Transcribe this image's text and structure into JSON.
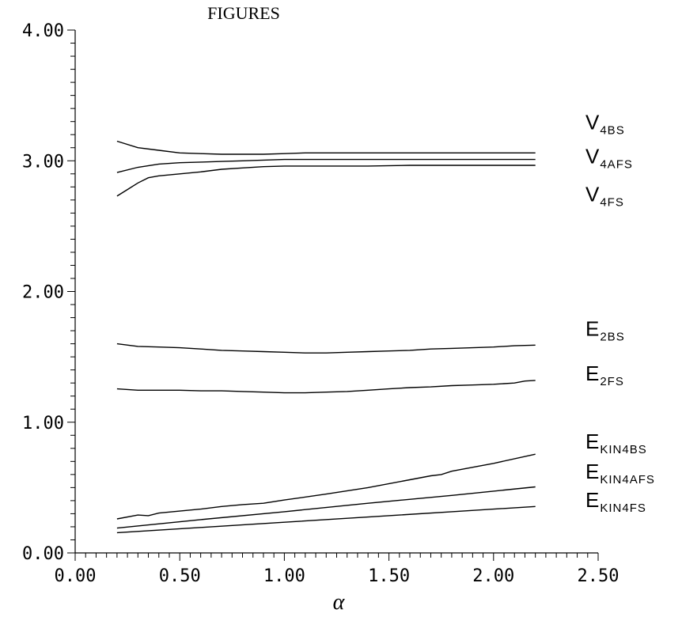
{
  "chart_data": {
    "type": "line",
    "title": "FIGURES",
    "xlabel": "α",
    "ylabel": "",
    "xlim": [
      0,
      2.5
    ],
    "ylim": [
      0,
      4
    ],
    "x_ticks": [
      "0.00",
      "0.50",
      "1.00",
      "1.50",
      "2.00",
      "2.50"
    ],
    "y_ticks": [
      "0.00",
      "1.00",
      "2.00",
      "3.00",
      "4.00"
    ],
    "grid": false,
    "series": [
      {
        "name": "V4BS",
        "main": "V",
        "sub": "4BS",
        "label_y": 3.24,
        "x": [
          0.2,
          0.3,
          0.4,
          0.5,
          0.6,
          0.7,
          0.8,
          0.9,
          1.0,
          1.1,
          1.2,
          1.4,
          1.6,
          1.8,
          2.0,
          2.2
        ],
        "y": [
          3.15,
          3.1,
          3.08,
          3.06,
          3.055,
          3.05,
          3.05,
          3.05,
          3.055,
          3.06,
          3.06,
          3.06,
          3.06,
          3.06,
          3.06,
          3.06
        ]
      },
      {
        "name": "V4AFS",
        "main": "V",
        "sub": "4AFS",
        "label_y": 2.98,
        "x": [
          0.2,
          0.3,
          0.4,
          0.5,
          0.6,
          0.7,
          0.8,
          0.9,
          1.0,
          1.2,
          1.4,
          1.6,
          1.8,
          2.0,
          2.2
        ],
        "y": [
          2.91,
          2.95,
          2.975,
          2.985,
          2.99,
          2.995,
          3.0,
          3.005,
          3.01,
          3.01,
          3.01,
          3.01,
          3.01,
          3.01,
          3.01
        ]
      },
      {
        "name": "V4FS",
        "main": "V",
        "sub": "4FS",
        "label_y": 2.69,
        "x": [
          0.2,
          0.25,
          0.3,
          0.35,
          0.4,
          0.5,
          0.6,
          0.7,
          0.8,
          0.9,
          1.0,
          1.2,
          1.4,
          1.6,
          1.8,
          2.0,
          2.2
        ],
        "y": [
          2.73,
          2.78,
          2.83,
          2.87,
          2.885,
          2.9,
          2.915,
          2.935,
          2.945,
          2.955,
          2.96,
          2.96,
          2.96,
          2.965,
          2.965,
          2.965,
          2.965
        ]
      },
      {
        "name": "E2BS",
        "main": "E",
        "sub": "2BS",
        "label_y": 1.66,
        "x": [
          0.2,
          0.3,
          0.4,
          0.5,
          0.6,
          0.7,
          0.8,
          0.9,
          1.0,
          1.1,
          1.2,
          1.3,
          1.4,
          1.5,
          1.6,
          1.7,
          1.8,
          1.9,
          2.0,
          2.1,
          2.2
        ],
        "y": [
          1.6,
          1.58,
          1.575,
          1.57,
          1.56,
          1.55,
          1.545,
          1.54,
          1.535,
          1.53,
          1.53,
          1.535,
          1.54,
          1.545,
          1.55,
          1.56,
          1.565,
          1.57,
          1.575,
          1.585,
          1.59
        ]
      },
      {
        "name": "E2FS",
        "main": "E",
        "sub": "2FS",
        "label_y": 1.32,
        "x": [
          0.2,
          0.3,
          0.4,
          0.5,
          0.6,
          0.7,
          0.8,
          0.9,
          1.0,
          1.1,
          1.2,
          1.3,
          1.4,
          1.5,
          1.6,
          1.7,
          1.8,
          1.9,
          2.0,
          2.1,
          2.15,
          2.2
        ],
        "y": [
          1.255,
          1.245,
          1.245,
          1.245,
          1.24,
          1.24,
          1.235,
          1.23,
          1.225,
          1.225,
          1.23,
          1.235,
          1.245,
          1.255,
          1.265,
          1.27,
          1.28,
          1.285,
          1.29,
          1.3,
          1.315,
          1.32
        ]
      },
      {
        "name": "EKIN4BS",
        "main": "E",
        "sub": "KIN4BS",
        "label_y": 0.8,
        "x": [
          0.2,
          0.3,
          0.35,
          0.4,
          0.5,
          0.6,
          0.7,
          0.8,
          0.9,
          1.0,
          1.2,
          1.4,
          1.6,
          1.7,
          1.75,
          1.8,
          2.0,
          2.2
        ],
        "y": [
          0.26,
          0.29,
          0.285,
          0.305,
          0.32,
          0.335,
          0.355,
          0.37,
          0.38,
          0.405,
          0.45,
          0.5,
          0.56,
          0.59,
          0.6,
          0.625,
          0.685,
          0.755
        ]
      },
      {
        "name": "EKIN4AFS",
        "main": "E",
        "sub": "KIN4AFS",
        "label_y": 0.57,
        "x": [
          0.2,
          0.6,
          1.0,
          1.4,
          1.8,
          2.2
        ],
        "y": [
          0.19,
          0.255,
          0.315,
          0.38,
          0.44,
          0.505
        ]
      },
      {
        "name": "EKIN4FS",
        "main": "E",
        "sub": "KIN4FS",
        "label_y": 0.35,
        "x": [
          0.2,
          0.6,
          1.0,
          1.4,
          1.8,
          2.2
        ],
        "y": [
          0.155,
          0.195,
          0.235,
          0.275,
          0.315,
          0.355
        ]
      }
    ]
  }
}
